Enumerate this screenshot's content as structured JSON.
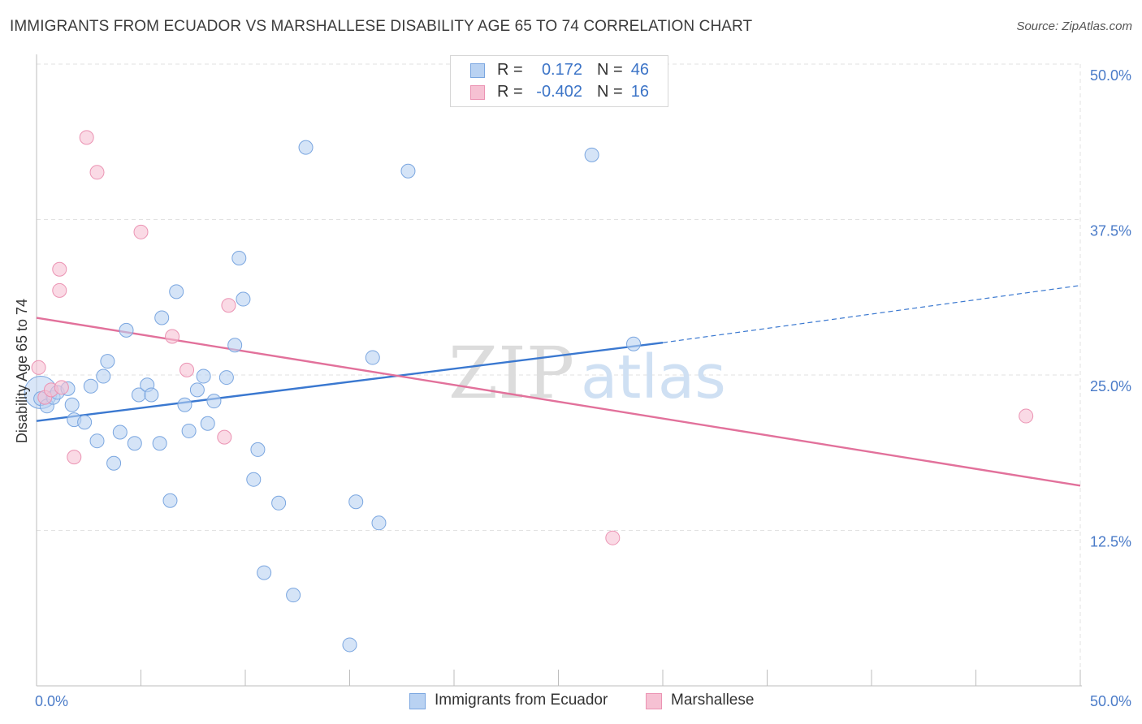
{
  "title": "IMMIGRANTS FROM ECUADOR VS MARSHALLESE DISABILITY AGE 65 TO 74 CORRELATION CHART",
  "source": "Source: ZipAtlas.com",
  "watermark": {
    "zip": "ZIP",
    "atlas": "atlas"
  },
  "legend": {
    "rows": [
      {
        "r_label": "R =",
        "r_value": "0.172",
        "n_label": "N =",
        "n_value": "46"
      },
      {
        "r_label": "R =",
        "r_value": "-0.402",
        "n_label": "N =",
        "n_value": "16"
      }
    ]
  },
  "colors": {
    "blue": "#3a78d0",
    "blue_fill": "#b9d2f2",
    "pink": "#e2719b",
    "pink_fill": "#f6c1d3",
    "tick_text": "#4a7bc8"
  },
  "chart_data": {
    "type": "scatter",
    "title": "IMMIGRANTS FROM ECUADOR VS MARSHALLESE DISABILITY AGE 65 TO 74 CORRELATION CHART",
    "xlabel": "",
    "ylabel": "Disability Age 65 to 74",
    "xlim": [
      0,
      50
    ],
    "ylim": [
      0,
      50
    ],
    "x_tick_labels": {
      "left": "0.0%",
      "right": "50.0%"
    },
    "y_ticks": [
      {
        "value": 12.5,
        "label": "12.5%"
      },
      {
        "value": 25.0,
        "label": "25.0%"
      },
      {
        "value": 37.5,
        "label": "37.5%"
      },
      {
        "value": 50.0,
        "label": "50.0%"
      }
    ],
    "grid": true,
    "legend_position": "bottom",
    "series": [
      {
        "name": "Immigrants from Ecuador",
        "color": "#3a78d0",
        "points": [
          [
            0.2,
            23.1
          ],
          [
            0.5,
            22.5
          ],
          [
            0.8,
            23.2
          ],
          [
            1.0,
            23.6
          ],
          [
            1.5,
            23.9
          ],
          [
            1.7,
            22.6
          ],
          [
            1.8,
            21.4
          ],
          [
            2.3,
            21.2
          ],
          [
            2.6,
            24.1
          ],
          [
            2.9,
            19.7
          ],
          [
            3.2,
            24.9
          ],
          [
            3.4,
            26.1
          ],
          [
            3.7,
            17.9
          ],
          [
            4.0,
            20.4
          ],
          [
            4.3,
            28.6
          ],
          [
            4.7,
            19.5
          ],
          [
            4.9,
            23.4
          ],
          [
            5.3,
            24.2
          ],
          [
            5.5,
            23.4
          ],
          [
            5.9,
            19.5
          ],
          [
            6.0,
            29.6
          ],
          [
            6.4,
            14.9
          ],
          [
            6.7,
            31.7
          ],
          [
            7.1,
            22.6
          ],
          [
            7.3,
            20.5
          ],
          [
            7.7,
            23.8
          ],
          [
            8.0,
            24.9
          ],
          [
            8.2,
            21.1
          ],
          [
            8.5,
            22.9
          ],
          [
            9.1,
            24.8
          ],
          [
            9.5,
            27.4
          ],
          [
            9.7,
            34.4
          ],
          [
            9.9,
            31.1
          ],
          [
            10.4,
            16.6
          ],
          [
            10.6,
            19.0
          ],
          [
            10.9,
            9.1
          ],
          [
            11.6,
            14.7
          ],
          [
            12.3,
            7.3
          ],
          [
            12.9,
            43.3
          ],
          [
            15.0,
            3.3
          ],
          [
            15.3,
            14.8
          ],
          [
            16.1,
            26.4
          ],
          [
            16.4,
            13.1
          ],
          [
            17.8,
            41.4
          ],
          [
            26.6,
            42.7
          ],
          [
            28.6,
            27.5
          ]
        ],
        "trend": {
          "x0": 0,
          "y0": 21.3,
          "x1": 30,
          "y1": 27.6,
          "dashed_to_x": 50,
          "dashed_to_y": 32.2
        }
      },
      {
        "name": "Marshallese",
        "color": "#e2719b",
        "points": [
          [
            0.1,
            25.6
          ],
          [
            0.4,
            23.2
          ],
          [
            0.7,
            23.8
          ],
          [
            1.1,
            31.8
          ],
          [
            1.1,
            33.5
          ],
          [
            1.2,
            24.0
          ],
          [
            1.8,
            18.4
          ],
          [
            2.4,
            44.1
          ],
          [
            2.9,
            41.3
          ],
          [
            5.0,
            36.5
          ],
          [
            6.5,
            28.1
          ],
          [
            7.2,
            25.4
          ],
          [
            9.0,
            20.0
          ],
          [
            9.2,
            30.6
          ],
          [
            27.6,
            11.9
          ],
          [
            47.4,
            21.7
          ]
        ],
        "trend": {
          "x0": 0,
          "y0": 29.6,
          "x1": 50,
          "y1": 16.1
        }
      }
    ]
  }
}
